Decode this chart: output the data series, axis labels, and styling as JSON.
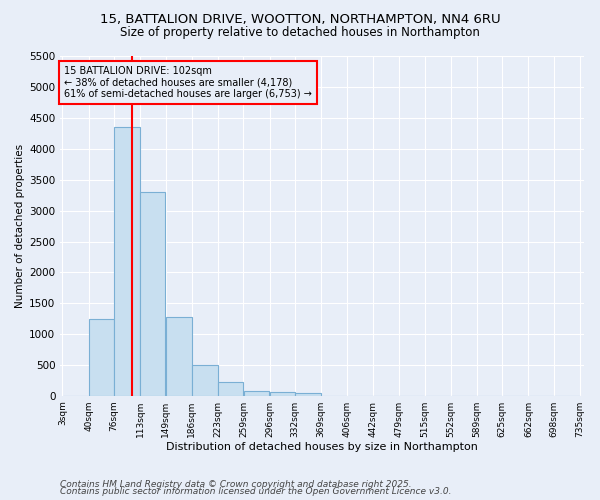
{
  "title1": "15, BATTALION DRIVE, WOOTTON, NORTHAMPTON, NN4 6RU",
  "title2": "Size of property relative to detached houses in Northampton",
  "xlabel": "Distribution of detached houses by size in Northampton",
  "ylabel": "Number of detached properties",
  "bin_edges": [
    3,
    40,
    76,
    113,
    149,
    186,
    223,
    259,
    296,
    332,
    369,
    406,
    442,
    479,
    515,
    552,
    589,
    625,
    662,
    698,
    735
  ],
  "bar_heights": [
    0,
    1250,
    4350,
    3300,
    1280,
    500,
    220,
    80,
    55,
    40,
    0,
    0,
    0,
    0,
    0,
    0,
    0,
    0,
    0,
    0
  ],
  "bar_color": "#c8dff0",
  "bar_edgecolor": "#7aafd4",
  "red_line_x": 102,
  "ylim": [
    0,
    5500
  ],
  "yticks": [
    0,
    500,
    1000,
    1500,
    2000,
    2500,
    3000,
    3500,
    4000,
    4500,
    5000,
    5500
  ],
  "annotation_text": "15 BATTALION DRIVE: 102sqm\n← 38% of detached houses are smaller (4,178)\n61% of semi-detached houses are larger (6,753) →",
  "footer1": "Contains HM Land Registry data © Crown copyright and database right 2025.",
  "footer2": "Contains public sector information licensed under the Open Government Licence v3.0.",
  "bg_color": "#e8eef8",
  "grid_color": "#ffffff",
  "title1_fontsize": 9.5,
  "title2_fontsize": 8.5,
  "tick_label_fontsize": 6.5,
  "axis_label_fontsize": 8,
  "ylabel_fontsize": 7.5,
  "footer_fontsize": 6.5
}
